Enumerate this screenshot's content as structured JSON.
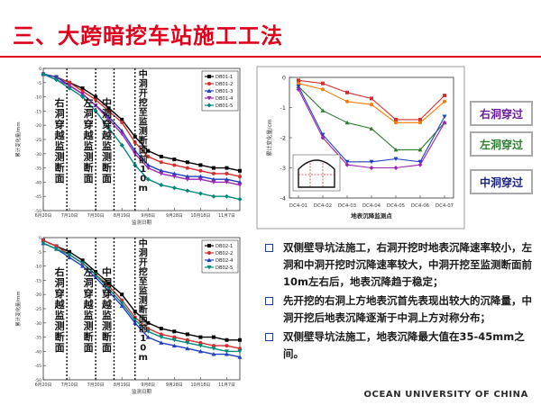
{
  "slide": {
    "title": "三、大跨暗挖车站施工工法",
    "footer": "OCEAN UNIVERSITY OF CHINA",
    "labels": {
      "right": {
        "text": "右洞穿过",
        "color": "#6a1b9a"
      },
      "left": {
        "text": "左洞穿过",
        "color": "#2e7d32"
      },
      "middle": {
        "text": "中洞穿过",
        "color": "#1a237e"
      }
    },
    "bullets": [
      "双侧壁导坑法施工，右洞开挖时地表沉降速率较小，左洞和中洞开挖时沉降速率较大，中洞开挖至监测断面前10m左右后，地表沉降趋于稳定；",
      "先开挖的右洞上方地表沉首先表现出较大的沉降量，中洞开挖后地表沉降逐渐于中洞上方对称分布；",
      "双侧壁导坑法施工，地表沉降最大值在35-45mm之间。"
    ]
  },
  "chart_data": [
    {
      "type": "line",
      "ylabel": "累计变化量/mm",
      "xlabel": "监测日期",
      "categories": [
        "6月20日",
        "7月10日",
        "7月30日",
        "8月19日",
        "9月8日",
        "9月28日",
        "10月18日",
        "11月7日"
      ],
      "ylim": [
        -50,
        0
      ],
      "yticks": [
        0,
        -5,
        -10,
        -15,
        -20,
        -25,
        -30,
        -35,
        -40,
        -45,
        -50
      ],
      "phases": [
        "右洞穿越监测断面",
        "左洞穿越监测断面",
        "中洞穿越监测断面",
        "中洞开挖至监测断面前10m"
      ],
      "phase_x": [
        0.9,
        2.0,
        2.7,
        3.5
      ],
      "legend_position": "top-right",
      "series": [
        {
          "name": "DB01-1",
          "color": "#000000",
          "x": [
            0,
            0.5,
            1,
            1.5,
            2,
            2.5,
            3,
            3.5,
            4,
            4.5,
            5,
            5.5,
            6,
            6.5,
            7,
            7.5
          ],
          "y": [
            -2,
            -3,
            -5,
            -7,
            -10,
            -14,
            -18,
            -24,
            -29,
            -31,
            -32,
            -33,
            -34,
            -35,
            -35,
            -36
          ]
        },
        {
          "name": "DB01-2",
          "color": "#d32f2f",
          "x": [
            0,
            0.5,
            1,
            1.5,
            2,
            2.5,
            3,
            3.5,
            4,
            4.5,
            5,
            5.5,
            6,
            6.5,
            7,
            7.5
          ],
          "y": [
            -2,
            -3,
            -5,
            -8,
            -11,
            -15,
            -19,
            -26,
            -31,
            -33,
            -34,
            -35,
            -36,
            -37,
            -37,
            -38
          ]
        },
        {
          "name": "DB01-3",
          "color": "#1f3fbf",
          "x": [
            0,
            0.5,
            1,
            1.5,
            2,
            2.5,
            3,
            3.5,
            4,
            4.5,
            5,
            5.5,
            6,
            6.5,
            7,
            7.5
          ],
          "y": [
            -2,
            -3,
            -6,
            -9,
            -13,
            -17,
            -22,
            -29,
            -34,
            -36,
            -37,
            -38,
            -38,
            -39,
            -39,
            -40
          ]
        },
        {
          "name": "DB01-4",
          "color": "#9c27b0",
          "x": [
            0,
            0.5,
            1,
            1.5,
            2,
            2.5,
            3,
            3.5,
            4,
            4.5,
            5,
            5.5,
            6,
            6.5,
            7,
            7.5
          ],
          "y": [
            -2,
            -4,
            -6,
            -9,
            -13,
            -18,
            -23,
            -30,
            -35,
            -37,
            -38,
            -39,
            -39,
            -40,
            -40,
            -41
          ]
        },
        {
          "name": "DB01-5",
          "color": "#00897b",
          "x": [
            0,
            0.5,
            1,
            1.5,
            2,
            2.5,
            3,
            3.5,
            4,
            4.5,
            5,
            5.5,
            6,
            6.5,
            7,
            7.5
          ],
          "y": [
            -2,
            -4,
            -7,
            -10,
            -15,
            -21,
            -27,
            -34,
            -39,
            -41,
            -42,
            -43,
            -44,
            -45,
            -45,
            -46
          ]
        }
      ]
    },
    {
      "type": "line",
      "ylabel": "累计变化量/mm",
      "xlabel": "监测日期",
      "categories": [
        "6月20日",
        "7月10日",
        "7月30日",
        "8月19日",
        "9月8日",
        "9月28日",
        "10月18日",
        "11月7日"
      ],
      "ylim": [
        -50,
        0
      ],
      "yticks": [
        0,
        -5,
        -10,
        -15,
        -20,
        -25,
        -30,
        -35,
        -40,
        -45,
        -50
      ],
      "phases": [
        "右洞穿越监测断面",
        "左洞穿越监测断面",
        "中洞穿越监测断面",
        "中洞开挖至监测断面前10m"
      ],
      "phase_x": [
        0.9,
        2.0,
        2.7,
        3.5
      ],
      "legend_position": "top-right",
      "series": [
        {
          "name": "DB02-1",
          "color": "#000000",
          "x": [
            0,
            0.5,
            1,
            1.5,
            2,
            2.5,
            3,
            3.5,
            4,
            4.5,
            5,
            5.5,
            6,
            6.5,
            7,
            7.5
          ],
          "y": [
            -1,
            -3,
            -5,
            -8,
            -12,
            -16,
            -20,
            -26,
            -30,
            -32,
            -33,
            -34,
            -35,
            -35,
            -36,
            -36
          ]
        },
        {
          "name": "DB02-2",
          "color": "#d32f2f",
          "x": [
            0,
            0.5,
            1,
            1.5,
            2,
            2.5,
            3,
            3.5,
            4,
            4.5,
            5,
            5.5,
            6,
            6.5,
            7,
            7.5
          ],
          "y": [
            -1,
            -3,
            -6,
            -9,
            -13,
            -17,
            -22,
            -28,
            -32,
            -34,
            -35,
            -36,
            -37,
            -38,
            -38,
            -39
          ]
        },
        {
          "name": "DB02-4",
          "color": "#1f3fbf",
          "x": [
            0,
            0.5,
            1,
            1.5,
            2,
            2.5,
            3,
            3.5,
            4,
            4.5,
            5,
            5.5,
            6,
            6.5,
            7,
            7.5
          ],
          "y": [
            -2,
            -4,
            -7,
            -10,
            -14,
            -19,
            -24,
            -30,
            -35,
            -37,
            -38,
            -39,
            -40,
            -41,
            -41,
            -42
          ]
        },
        {
          "name": "DB02-5",
          "color": "#00897b",
          "x": [
            0,
            0.5,
            1,
            1.5,
            2,
            2.5,
            3,
            3.5,
            4,
            4.5,
            5,
            5.5,
            6,
            6.5,
            7,
            7.5
          ],
          "y": [
            -2,
            -4,
            -6,
            -9,
            -13,
            -18,
            -23,
            -29,
            -33,
            -35,
            -36,
            -37,
            -38,
            -39,
            -40,
            -40
          ]
        }
      ]
    },
    {
      "type": "line",
      "ylabel": "累计变化量/cm",
      "xlabel": "地表沉降监测点",
      "categories": [
        "DC4-01",
        "DC4-02",
        "DC4-03",
        "DC4-04",
        "DC4-05",
        "DC4-06",
        "DC4-07"
      ],
      "ylim": [
        -4,
        0
      ],
      "yticks": [
        0,
        -1,
        -2,
        -3,
        -4
      ],
      "series": [
        {
          "color": "#d32f2f",
          "y": [
            -0.1,
            -0.2,
            -0.5,
            -0.7,
            -1.4,
            -1.4,
            -0.6
          ]
        },
        {
          "color": "#f57c00",
          "y": [
            -0.2,
            -0.4,
            -0.8,
            -0.9,
            -1.5,
            -1.5,
            -0.8
          ]
        },
        {
          "color": "#2e7d32",
          "y": [
            -0.3,
            -1.1,
            -1.5,
            -1.7,
            -2.4,
            -2.4,
            -1.5
          ]
        },
        {
          "color": "#1f3fbf",
          "y": [
            -0.3,
            -1.9,
            -2.8,
            -2.8,
            -2.7,
            -2.8,
            -1.3
          ]
        },
        {
          "color": "#9c27b0",
          "y": [
            -0.4,
            -2.0,
            -2.9,
            -3.0,
            -3.0,
            -2.9,
            -1.5
          ]
        }
      ]
    }
  ]
}
